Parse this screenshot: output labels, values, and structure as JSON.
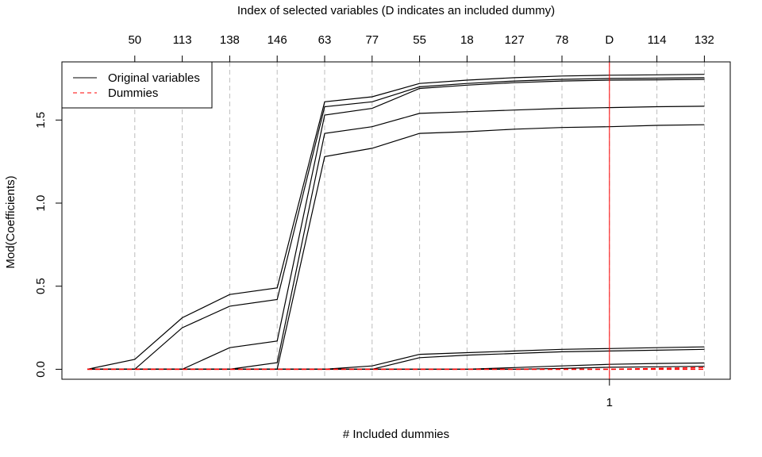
{
  "chart_data": {
    "type": "line",
    "top_axis_title": "Index of selected variables (D indicates an included dummy)",
    "xlabel": "# Included dummies",
    "ylabel": "Mod(Coefficients)",
    "top_ticks": [
      "50",
      "113",
      "138",
      "146",
      "63",
      "77",
      "55",
      "18",
      "127",
      "78",
      "D",
      "114",
      "132"
    ],
    "bottom_ticks": [
      {
        "step": 11,
        "label": "1"
      }
    ],
    "steps": [
      0,
      1,
      2,
      3,
      4,
      5,
      6,
      7,
      8,
      9,
      10,
      11,
      12,
      13
    ],
    "ylim": [
      -0.06,
      1.85
    ],
    "yticks": [
      0.0,
      0.5,
      1.0,
      1.5
    ],
    "ytick_labels": [
      "0.0",
      "0.5",
      "1.0",
      "1.5"
    ],
    "grid": "dashed vertical lines at each selection step",
    "dummy_entry_step": 11,
    "legend": {
      "position": "top-left",
      "entries": [
        {
          "label": "Original variables",
          "color": "#000000",
          "style": "solid"
        },
        {
          "label": "Dummies",
          "color": "#ff0000",
          "style": "dashed"
        }
      ]
    },
    "series": [
      {
        "values": [
          0,
          0.06,
          0.31,
          0.45,
          0.49,
          1.61,
          1.64,
          1.72,
          1.74,
          1.755,
          1.765,
          1.77,
          1.772,
          1.775
        ]
      },
      {
        "values": [
          0,
          0,
          0.25,
          0.38,
          0.42,
          1.58,
          1.61,
          1.7,
          1.72,
          1.735,
          1.745,
          1.75,
          1.752,
          1.755
        ]
      },
      {
        "values": [
          0,
          0,
          0,
          0.13,
          0.17,
          1.53,
          1.57,
          1.69,
          1.71,
          1.725,
          1.735,
          1.74,
          1.742,
          1.745
        ]
      },
      {
        "values": [
          0,
          0,
          0,
          0,
          0.04,
          1.42,
          1.46,
          1.54,
          1.55,
          1.56,
          1.57,
          1.575,
          1.58,
          1.583
        ]
      },
      {
        "values": [
          0,
          0,
          0,
          0,
          0,
          1.28,
          1.33,
          1.42,
          1.43,
          1.445,
          1.455,
          1.46,
          1.468,
          1.472
        ]
      },
      {
        "values": [
          0,
          0,
          0,
          0,
          0,
          0,
          0.02,
          0.09,
          0.1,
          0.11,
          0.12,
          0.125,
          0.13,
          0.135
        ]
      },
      {
        "values": [
          0,
          0,
          0,
          0,
          0,
          0,
          0,
          0.07,
          0.085,
          0.095,
          0.105,
          0.11,
          0.115,
          0.12
        ]
      },
      {
        "values": [
          0,
          0,
          0,
          0,
          0,
          0,
          0,
          0,
          0,
          0.01,
          0.02,
          0.03,
          0.035,
          0.038
        ]
      },
      {
        "values": [
          0,
          0,
          0,
          0,
          0,
          0,
          0,
          0,
          0,
          0,
          0.005,
          0.012,
          0.015,
          0.018
        ]
      }
    ],
    "dummy_series": [
      {
        "values": [
          0,
          0,
          0,
          0,
          0,
          0,
          0,
          0,
          0,
          0,
          0,
          0,
          0.005,
          0.01
        ]
      },
      {
        "values": [
          0,
          0,
          0,
          0,
          0,
          0,
          0,
          0,
          0,
          0,
          0,
          0,
          0,
          0
        ]
      }
    ],
    "colors": {
      "original": "#000000",
      "dummy": "#ff0000",
      "grid": "#bdbdbd"
    }
  }
}
